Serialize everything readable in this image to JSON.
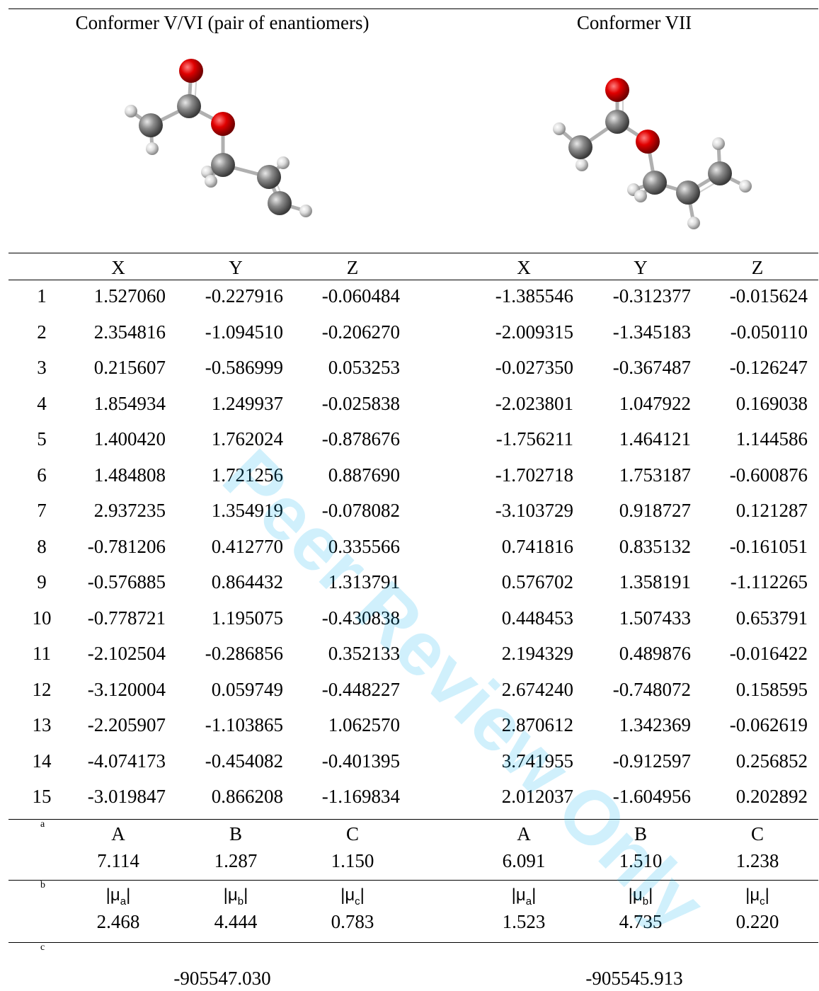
{
  "headers": {
    "left": "Conformer V/VI (pair of enantiomers)",
    "right": "Conformer VII"
  },
  "columns": [
    "X",
    "Y",
    "Z",
    "X",
    "Y",
    "Z"
  ],
  "rows": [
    [
      "1",
      "1.527060",
      "-0.227916",
      "-0.060484",
      "-1.385546",
      "-0.312377",
      "-0.015624"
    ],
    [
      "2",
      "2.354816",
      "-1.094510",
      "-0.206270",
      "-2.009315",
      "-1.345183",
      "-0.050110"
    ],
    [
      "3",
      "0.215607",
      "-0.586999",
      "0.053253",
      "-0.027350",
      "-0.367487",
      "-0.126247"
    ],
    [
      "4",
      "1.854934",
      "1.249937",
      "-0.025838",
      "-2.023801",
      "1.047922",
      "0.169038"
    ],
    [
      "5",
      "1.400420",
      "1.762024",
      "-0.878676",
      "-1.756211",
      "1.464121",
      "1.144586"
    ],
    [
      "6",
      "1.484808",
      "1.721256",
      "0.887690",
      "-1.702718",
      "1.753187",
      "-0.600876"
    ],
    [
      "7",
      "2.937235",
      "1.354919",
      "-0.078082",
      "-3.103729",
      "0.918727",
      "0.121287"
    ],
    [
      "8",
      "-0.781206",
      "0.412770",
      "0.335566",
      "0.741816",
      "0.835132",
      "-0.161051"
    ],
    [
      "9",
      "-0.576885",
      "0.864432",
      "1.313791",
      "0.576702",
      "1.358191",
      "-1.112265"
    ],
    [
      "10",
      "-0.778721",
      "1.195075",
      "-0.430838",
      "0.448453",
      "1.507433",
      "0.653791"
    ],
    [
      "11",
      "-2.102504",
      "-0.286856",
      "0.352133",
      "2.194329",
      "0.489876",
      "-0.016422"
    ],
    [
      "12",
      "-3.120004",
      "0.059749",
      "-0.448227",
      "2.674240",
      "-0.748072",
      "0.158595"
    ],
    [
      "13",
      "-2.205907",
      "-1.103865",
      "1.062570",
      "2.870612",
      "1.342369",
      "-0.062619"
    ],
    [
      "14",
      "-4.074173",
      "-0.454082",
      "-0.401395",
      "3.741955",
      "-0.912597",
      "0.256852"
    ],
    [
      "15",
      "-3.019847",
      "0.866208",
      "-1.169834",
      "2.012037",
      "-1.604956",
      "0.202892"
    ]
  ],
  "rot": {
    "mark": "a",
    "labels": [
      "A",
      "B",
      "C",
      "A",
      "B",
      "C"
    ],
    "values": [
      "7.114",
      "1.287",
      "1.150",
      "6.091",
      "1.510",
      "1.238"
    ]
  },
  "dip": {
    "mark": "b",
    "labels": [
      {
        "base": "|μ",
        "sub": "a",
        "end": "|"
      },
      {
        "base": "|μ",
        "sub": "b",
        "end": "|"
      },
      {
        "base": "|μ",
        "sub": "c",
        "end": "|"
      },
      {
        "base": "|μ",
        "sub": "a",
        "end": "|"
      },
      {
        "base": "|μ",
        "sub": "b",
        "end": "|"
      },
      {
        "base": "|μ",
        "sub": "c",
        "end": "|"
      }
    ],
    "values": [
      "2.468",
      "4.444",
      "0.783",
      "1.523",
      "4.735",
      "0.220"
    ]
  },
  "energy": {
    "mark": "c",
    "left": "-905547.030",
    "right": "-905545.913"
  },
  "watermark": "Peer Review Only",
  "colors": {
    "oxygen": "#e00000",
    "carbon": "#8a8a8a",
    "hydrogen": "#dcdcdc",
    "watermark": "#00aeef"
  }
}
